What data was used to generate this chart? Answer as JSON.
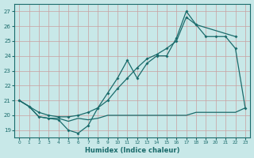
{
  "xlabel": "Humidex (Indice chaleur)",
  "xlim": [
    -0.5,
    23.5
  ],
  "ylim": [
    18.5,
    27.5
  ],
  "yticks": [
    19,
    20,
    21,
    22,
    23,
    24,
    25,
    26,
    27
  ],
  "xticks": [
    0,
    1,
    2,
    3,
    4,
    5,
    6,
    7,
    8,
    9,
    10,
    11,
    12,
    13,
    14,
    15,
    16,
    17,
    18,
    19,
    20,
    21,
    22,
    23
  ],
  "bg_color": "#c8e8e8",
  "line_color": "#1a6b6b",
  "grid_color": "#b0d0d0",
  "series_jagged_x": [
    0,
    1,
    2,
    3,
    4,
    5,
    6,
    7,
    8,
    9,
    10,
    11,
    12,
    13,
    14,
    15,
    16,
    17,
    18,
    22
  ],
  "series_jagged_y": [
    21.0,
    20.6,
    19.9,
    19.8,
    19.7,
    19.0,
    18.8,
    19.3,
    20.5,
    21.5,
    22.5,
    23.7,
    22.5,
    23.5,
    24.0,
    24.0,
    25.2,
    27.0,
    26.1,
    25.3
  ],
  "series_smooth_x": [
    0,
    1,
    2,
    3,
    4,
    5,
    6,
    7,
    8,
    9,
    10,
    11,
    12,
    13,
    14,
    15,
    16,
    17,
    18,
    19,
    20,
    21,
    22,
    23
  ],
  "series_smooth_y": [
    21.0,
    20.6,
    20.2,
    20.0,
    19.9,
    19.9,
    20.0,
    20.2,
    20.5,
    21.0,
    21.8,
    22.5,
    23.2,
    23.8,
    24.1,
    24.5,
    25.0,
    26.6,
    26.1,
    25.3,
    25.3,
    25.3,
    24.5,
    20.5
  ],
  "series_flat_x": [
    0,
    1,
    2,
    3,
    4,
    5,
    6,
    7,
    8,
    9,
    10,
    11,
    12,
    13,
    14,
    15,
    16,
    17,
    18,
    19,
    20,
    21,
    22,
    23
  ],
  "series_flat_y": [
    21.0,
    20.6,
    19.9,
    19.8,
    19.8,
    19.6,
    19.8,
    19.7,
    19.8,
    20.0,
    20.0,
    20.0,
    20.0,
    20.0,
    20.0,
    20.0,
    20.0,
    20.0,
    20.2,
    20.2,
    20.2,
    20.2,
    20.2,
    20.5
  ]
}
